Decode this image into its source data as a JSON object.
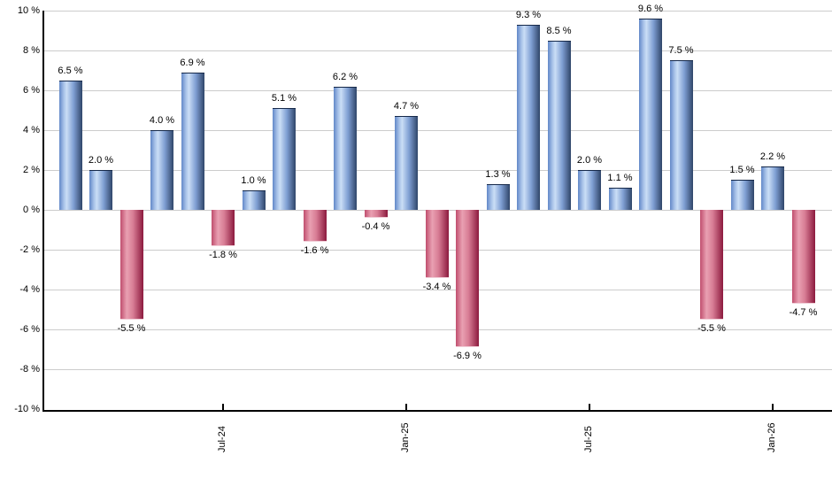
{
  "chart_data": {
    "type": "bar",
    "title": "",
    "xlabel": "",
    "ylabel": "",
    "ylim": [
      -10,
      10
    ],
    "grid": true,
    "legend": false,
    "y_ticks": [
      {
        "value": 10,
        "text": "10 %"
      },
      {
        "value": 8,
        "text": "8 %"
      },
      {
        "value": 6,
        "text": "6 %"
      },
      {
        "value": 4,
        "text": "4 %"
      },
      {
        "value": 2,
        "text": "2 %"
      },
      {
        "value": 0,
        "text": "0 %"
      },
      {
        "value": -2,
        "text": "-2 %"
      },
      {
        "value": -4,
        "text": "-4 %"
      },
      {
        "value": -6,
        "text": "-6 %"
      },
      {
        "value": -8,
        "text": "-8 %"
      },
      {
        "value": -10,
        "text": "-10 %"
      }
    ],
    "x_ticks": [
      {
        "text": "Jul-24",
        "bar_index": 5
      },
      {
        "text": "Jan-25",
        "bar_index": 11
      },
      {
        "text": "Jul-25",
        "bar_index": 17
      },
      {
        "text": "Jan-26",
        "bar_index": 23
      }
    ],
    "bars": [
      {
        "value": 6.5,
        "text": "6.5 %",
        "color": "blue"
      },
      {
        "value": 2.0,
        "text": "2.0 %",
        "color": "blue"
      },
      {
        "value": -5.5,
        "text": "-5.5 %",
        "color": "red"
      },
      {
        "value": 4.0,
        "text": "4.0 %",
        "color": "blue"
      },
      {
        "value": 6.9,
        "text": "6.9 %",
        "color": "blue"
      },
      {
        "value": -1.8,
        "text": "-1.8 %",
        "color": "red"
      },
      {
        "value": 1.0,
        "text": "1.0 %",
        "color": "blue"
      },
      {
        "value": 5.1,
        "text": "5.1 %",
        "color": "blue"
      },
      {
        "value": -1.6,
        "text": "-1.6 %",
        "color": "red"
      },
      {
        "value": 6.2,
        "text": "6.2 %",
        "color": "blue"
      },
      {
        "value": -0.4,
        "text": "-0.4 %",
        "color": "red"
      },
      {
        "value": 4.7,
        "text": "4.7 %",
        "color": "blue"
      },
      {
        "value": -3.4,
        "text": "-3.4 %",
        "color": "red"
      },
      {
        "value": -6.9,
        "text": "-6.9 %",
        "color": "red"
      },
      {
        "value": 1.3,
        "text": "1.3 %",
        "color": "blue"
      },
      {
        "value": 9.3,
        "text": "9.3 %",
        "color": "blue"
      },
      {
        "value": 8.5,
        "text": "8.5 %",
        "color": "blue"
      },
      {
        "value": 2.0,
        "text": "2.0 %",
        "color": "blue"
      },
      {
        "value": 1.1,
        "text": "1.1 %",
        "color": "blue"
      },
      {
        "value": 9.6,
        "text": "9.6 %",
        "color": "blue"
      },
      {
        "value": 7.5,
        "text": "7.5 %",
        "color": "blue"
      },
      {
        "value": -5.5,
        "text": "-5.5 %",
        "color": "red"
      },
      {
        "value": 1.5,
        "text": "1.5 %",
        "color": "blue"
      },
      {
        "value": 2.2,
        "text": "2.2 %",
        "color": "blue"
      },
      {
        "value": -4.7,
        "text": "-4.7 %",
        "color": "red"
      }
    ]
  },
  "colors": {
    "positive_bar": "#7aa0dc",
    "negative_bar": "#c94d6e",
    "gridline": "#cccccc",
    "axis": "#000000",
    "label_text": "#000000"
  }
}
